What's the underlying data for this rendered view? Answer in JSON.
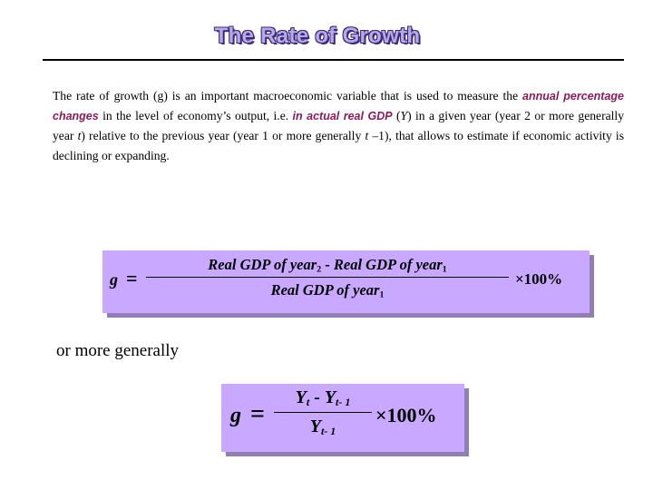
{
  "title": "The Rate of Growth",
  "paragraph": {
    "part1": "The rate of growth (g) is an important macroeconomic variable that is used to measure the ",
    "highlight1": "annual percentage changes",
    "part2": " in the level of economy’s output, i.e. ",
    "highlight2": "in actual real GDP",
    "part3": " (",
    "var_Y": "Y",
    "part4": ") in a given year (year 2 or more generally year ",
    "var_t": "t",
    "part5": ") relative to the previous year (year 1 or more generally ",
    "var_t2": "t",
    "part6": " –1), that allows to estimate if economic activity is declining or expanding."
  },
  "formula1": {
    "lhs": "g",
    "equals": "=",
    "num_a": "Real GDP of  year",
    "sub_a": "2",
    "minus": " - ",
    "num_b": "Real GDP of  year",
    "sub_b": "1",
    "den": "Real GDP of  year",
    "sub_den": "1",
    "times": "×100%"
  },
  "connector": "or more generally",
  "formula2": {
    "lhs": "g",
    "equals": "=",
    "num_a": "Y",
    "sub_a": "t",
    "minus": " - ",
    "num_b": "Y",
    "sub_b": "t- 1",
    "den": "Y",
    "sub_den": "t- 1",
    "times": "×100%"
  }
}
